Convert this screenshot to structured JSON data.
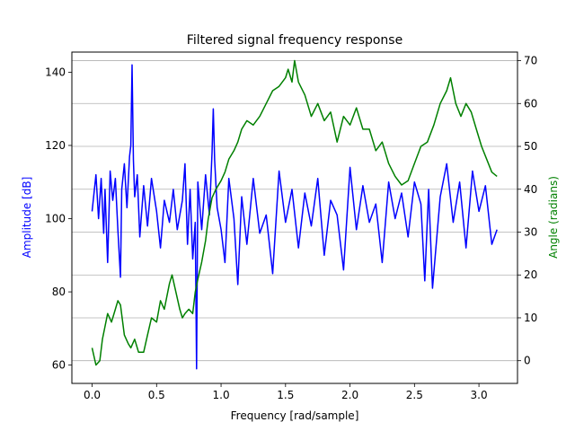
{
  "chart_data": {
    "type": "line",
    "title": "Filtered signal frequency response",
    "xlabel": "Frequency [rad/sample]",
    "ylabel_left": "Amplitude [dB]",
    "ylabel_right": "Angle (radians)",
    "xlim": [
      -0.157,
      3.299
    ],
    "ylim_left": [
      55,
      145.5
    ],
    "ylim_right": [
      -5.3,
      72
    ],
    "x_ticks": [
      0.0,
      0.5,
      1.0,
      1.5,
      2.0,
      2.5,
      3.0
    ],
    "x_tick_labels": [
      "0.0",
      "0.5",
      "1.0",
      "1.5",
      "2.0",
      "2.5",
      "3.0"
    ],
    "y_left_ticks": [
      60,
      80,
      100,
      120,
      140
    ],
    "y_left_tick_labels": [
      "60",
      "80",
      "100",
      "120",
      "140"
    ],
    "y_right_ticks": [
      0,
      10,
      20,
      30,
      40,
      50,
      60,
      70
    ],
    "y_right_tick_labels": [
      "0",
      "10",
      "20",
      "30",
      "40",
      "50",
      "60",
      "70"
    ],
    "grid": "right-axis horizontal",
    "series": [
      {
        "axis": "left",
        "color": "#0000ff",
        "x": [
          0.0,
          0.03,
          0.05,
          0.07,
          0.09,
          0.1,
          0.12,
          0.14,
          0.16,
          0.18,
          0.2,
          0.22,
          0.23,
          0.25,
          0.27,
          0.29,
          0.3,
          0.31,
          0.32,
          0.33,
          0.35,
          0.37,
          0.4,
          0.43,
          0.46,
          0.5,
          0.53,
          0.56,
          0.6,
          0.63,
          0.66,
          0.7,
          0.72,
          0.74,
          0.76,
          0.78,
          0.8,
          0.81,
          0.82,
          0.85,
          0.88,
          0.91,
          0.93,
          0.94,
          0.95,
          0.97,
          1.0,
          1.03,
          1.06,
          1.1,
          1.13,
          1.16,
          1.2,
          1.25,
          1.3,
          1.35,
          1.4,
          1.45,
          1.5,
          1.55,
          1.6,
          1.65,
          1.7,
          1.75,
          1.8,
          1.85,
          1.9,
          1.95,
          2.0,
          2.05,
          2.1,
          2.15,
          2.2,
          2.25,
          2.3,
          2.35,
          2.4,
          2.45,
          2.5,
          2.55,
          2.58,
          2.61,
          2.64,
          2.7,
          2.75,
          2.8,
          2.85,
          2.9,
          2.95,
          3.0,
          3.05,
          3.1,
          3.14
        ],
        "y": [
          102,
          112,
          100,
          111,
          96,
          108,
          88,
          113,
          105,
          111,
          97,
          84,
          108,
          115,
          103,
          117,
          120,
          142,
          116,
          106,
          112,
          95,
          109,
          98,
          111,
          102,
          92,
          105,
          99,
          108,
          97,
          105,
          115,
          93,
          108,
          89,
          99,
          59,
          110,
          97,
          112,
          101,
          118,
          130,
          116,
          103,
          97,
          88,
          111,
          100,
          82,
          106,
          93,
          111,
          96,
          101,
          85,
          113,
          99,
          108,
          92,
          107,
          98,
          111,
          90,
          105,
          101,
          86,
          114,
          97,
          109,
          99,
          104,
          88,
          110,
          100,
          107,
          95,
          110,
          104,
          83,
          108,
          81,
          106,
          115,
          99,
          110,
          92,
          113,
          102,
          109,
          93,
          97
        ]
      },
      {
        "axis": "right",
        "color": "#008000",
        "x": [
          0.0,
          0.03,
          0.06,
          0.08,
          0.1,
          0.12,
          0.15,
          0.18,
          0.2,
          0.22,
          0.25,
          0.28,
          0.3,
          0.33,
          0.36,
          0.4,
          0.43,
          0.46,
          0.5,
          0.53,
          0.56,
          0.6,
          0.62,
          0.65,
          0.68,
          0.7,
          0.72,
          0.75,
          0.78,
          0.8,
          0.82,
          0.85,
          0.88,
          0.9,
          0.93,
          0.96,
          1.0,
          1.03,
          1.06,
          1.1,
          1.13,
          1.16,
          1.2,
          1.25,
          1.3,
          1.35,
          1.4,
          1.45,
          1.5,
          1.52,
          1.55,
          1.57,
          1.6,
          1.65,
          1.7,
          1.75,
          1.8,
          1.85,
          1.9,
          1.95,
          2.0,
          2.05,
          2.1,
          2.15,
          2.2,
          2.25,
          2.3,
          2.35,
          2.4,
          2.45,
          2.5,
          2.55,
          2.6,
          2.65,
          2.7,
          2.75,
          2.78,
          2.82,
          2.86,
          2.9,
          2.94,
          2.98,
          3.02,
          3.06,
          3.1,
          3.14
        ],
        "y": [
          3,
          -1,
          0,
          5,
          8,
          11,
          9,
          12,
          14,
          13,
          6,
          4,
          3,
          5,
          2,
          2,
          6,
          10,
          9,
          14,
          12,
          18,
          20,
          16,
          12,
          10,
          11,
          12,
          11,
          16,
          19,
          23,
          28,
          33,
          38,
          40,
          42,
          44,
          47,
          49,
          51,
          54,
          56,
          55,
          57,
          60,
          63,
          64,
          66,
          68,
          65,
          70,
          65,
          62,
          57,
          60,
          56,
          58,
          51,
          57,
          55,
          59,
          54,
          54,
          49,
          51,
          46,
          43,
          41,
          42,
          46,
          50,
          51,
          55,
          60,
          63,
          66,
          60,
          57,
          60,
          58,
          54,
          50,
          47,
          44,
          43
        ]
      }
    ]
  }
}
